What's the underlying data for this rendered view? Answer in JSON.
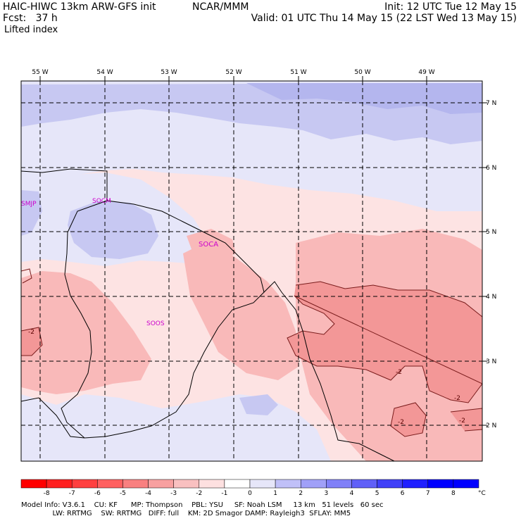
{
  "header": {
    "title_left": "HAIC-HIWC 13km ARW-GFS init",
    "center_org": "NCAR/MMM",
    "init": "Init: 12 UTC Tue 12 May 15",
    "fcst": "Fcst:   37 h",
    "valid": "Valid: 01 UTC Thu 14 May 15 (22 LST Wed 13 May 15)",
    "field": "Lifted index"
  },
  "map": {
    "longitude_labels": [
      "55 W",
      "54 W",
      "53 W",
      "52 W",
      "51 W",
      "50 W",
      "49 W"
    ],
    "latitude_labels": [
      "7 N",
      "6 N",
      "5 N",
      "4 N",
      "3 N",
      "2 N"
    ],
    "stations": [
      "SMJP",
      "SOCM",
      "SOCA",
      "SOOS"
    ],
    "contour_labels": [
      "-2",
      "-2",
      "-2",
      "-2",
      "-2"
    ],
    "colors": {
      "neg_weak": "#fde3e3",
      "neg_mod": "#f9b9b9",
      "neg_strong": "#f39797",
      "pos_weak": "#e6e6f9",
      "pos_mod": "#c7c8f2",
      "station": "#cc00cc"
    }
  },
  "colorbar": {
    "ticks": [
      "-8",
      "-7",
      "-6",
      "-5",
      "-4",
      "-3",
      "-2",
      "-1",
      "0",
      "1",
      "2",
      "3",
      "4",
      "5",
      "6",
      "7",
      "8"
    ],
    "unit": "°C",
    "colors": [
      "#ff0000",
      "#ff2020",
      "#ff4040",
      "#ff6060",
      "#f98080",
      "#f8a0a0",
      "#f9c0c0",
      "#fde0e0",
      "#ffffff",
      "#e6e6f9",
      "#c0c0f8",
      "#a0a0f8",
      "#8080f8",
      "#6060f8",
      "#4040f8",
      "#2020ff",
      "#0000ff"
    ]
  },
  "footer": {
    "line1": "Model Info: V3.6.1    CU: KF      MP: Thompson    PBL: YSU     SF: Noah LSM     13 km   51 levels   60 sec",
    "line2": "              LW: RRTMG    SW: RRTMG   DIFF: full    KM: 2D Smagor DAMP: Rayleigh3  SFLAY: MM5"
  }
}
